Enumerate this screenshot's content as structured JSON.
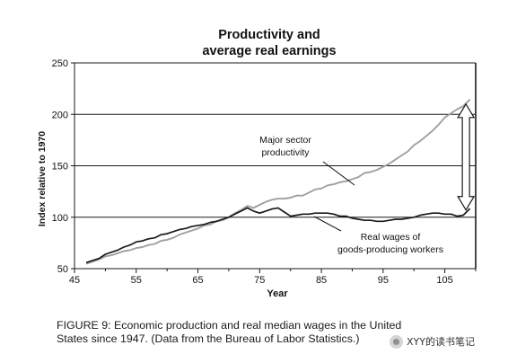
{
  "chart_data": {
    "type": "line",
    "title_line1": "Productivity and",
    "title_line2": "average real earnings",
    "xlabel": "Year",
    "ylabel": "Index relative to 1970",
    "xlim": [
      45,
      110
    ],
    "ylim": [
      50,
      250
    ],
    "x_ticks": [
      45,
      55,
      65,
      75,
      85,
      95,
      105
    ],
    "y_ticks": [
      50,
      100,
      150,
      200,
      250
    ],
    "grid": "horizontal",
    "series": [
      {
        "name": "Major sector productivity",
        "label_line1": "Major sector",
        "label_line2": "productivity",
        "color": "#a0a0a0",
        "x": [
          47,
          48,
          49,
          50,
          51,
          52,
          53,
          54,
          55,
          56,
          57,
          58,
          59,
          60,
          61,
          62,
          63,
          64,
          65,
          66,
          67,
          68,
          69,
          70,
          71,
          72,
          73,
          74,
          75,
          76,
          77,
          78,
          79,
          80,
          81,
          82,
          83,
          84,
          85,
          86,
          87,
          88,
          89,
          90,
          91,
          92,
          93,
          94,
          95,
          96,
          97,
          98,
          99,
          100,
          101,
          102,
          103,
          104,
          105,
          106,
          107,
          108,
          109
        ],
        "y": [
          55,
          57,
          59,
          62,
          63,
          65,
          67,
          68,
          70,
          71,
          73,
          74,
          77,
          78,
          80,
          83,
          85,
          87,
          89,
          92,
          93,
          96,
          97,
          100,
          104,
          107,
          111,
          109,
          112,
          115,
          117,
          118,
          118,
          119,
          121,
          121,
          124,
          127,
          128,
          131,
          132,
          134,
          135,
          137,
          139,
          143,
          144,
          146,
          149,
          152,
          156,
          160,
          164,
          170,
          174,
          179,
          184,
          190,
          197,
          201,
          205,
          208,
          214
        ]
      },
      {
        "name": "Real wages of goods-producing workers",
        "label_line1": "Real wages of",
        "label_line2": "goods-producing workers",
        "color": "#1a1a1a",
        "x": [
          47,
          48,
          49,
          50,
          51,
          52,
          53,
          54,
          55,
          56,
          57,
          58,
          59,
          60,
          61,
          62,
          63,
          64,
          65,
          66,
          67,
          68,
          69,
          70,
          71,
          72,
          73,
          74,
          75,
          76,
          77,
          78,
          79,
          80,
          81,
          82,
          83,
          84,
          85,
          86,
          87,
          88,
          89,
          90,
          91,
          92,
          93,
          94,
          95,
          96,
          97,
          98,
          99,
          100,
          101,
          102,
          103,
          104,
          105,
          106,
          107,
          108,
          109
        ],
        "y": [
          56,
          58,
          60,
          64,
          66,
          68,
          71,
          73,
          76,
          77,
          79,
          80,
          83,
          84,
          86,
          88,
          89,
          91,
          92,
          93,
          95,
          96,
          98,
          100,
          103,
          106,
          109,
          106,
          104,
          106,
          108,
          109,
          105,
          101,
          102,
          103,
          103,
          104,
          104,
          104,
          103,
          101,
          101,
          99,
          98,
          97,
          97,
          96,
          96,
          97,
          98,
          98,
          99,
          100,
          102,
          103,
          104,
          104,
          103,
          103,
          101,
          102,
          108
        ]
      }
    ],
    "gap_arrow": {
      "x": 109,
      "y_from": 107,
      "y_to": 210
    }
  },
  "caption": {
    "line1": "FIGURE 9: Economic production and real median wages in the United",
    "line2": "States since 1947. (Data from the Bureau of Labor Statistics.)"
  },
  "watermark": {
    "text": "XYY的读书笔记"
  }
}
